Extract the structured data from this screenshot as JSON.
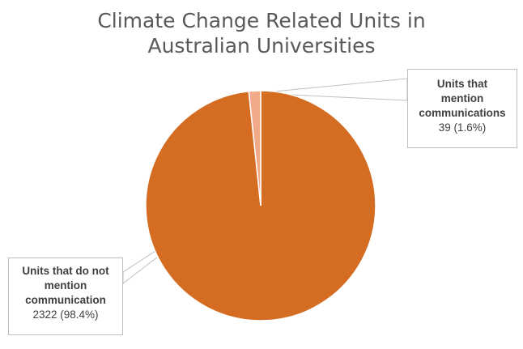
{
  "chart_data": {
    "type": "pie",
    "title": "Climate Change Related Units in Australian Universities",
    "title_lines": [
      "Climate Change Related Units in",
      "Australian Universities"
    ],
    "slices": [
      {
        "label_lines": [
          "Units that do not",
          "mention",
          "communication"
        ],
        "value": 2322,
        "value_text": "2322 (98.4%)",
        "percent": 98.4,
        "color": "#d46c21"
      },
      {
        "label_lines": [
          "Units that",
          "mention",
          "communications"
        ],
        "value": 39,
        "value_text": "39 (1.6%)",
        "percent": 1.6,
        "color": "#f2a98a"
      }
    ],
    "legend": "none"
  }
}
